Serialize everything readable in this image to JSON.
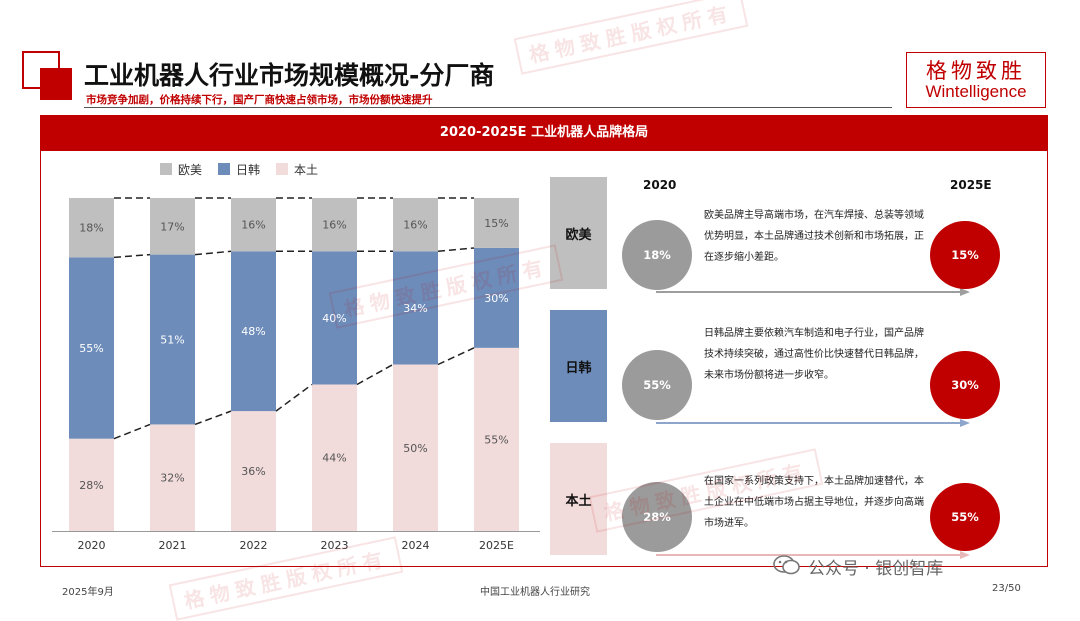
{
  "header": {
    "title": "工业机器人行业市场规模概况-分厂商",
    "subtitle": "市场竞争加剧，价格持续下行，国产厂商快速占领市场，市场份额快速提升",
    "brand_cn": "格物致胜",
    "brand_en": "Wintelligence"
  },
  "banner": {
    "title": "2020-2025E  工业机器人品牌格局"
  },
  "chart_data": {
    "type": "bar",
    "stacked": true,
    "categories": [
      "2020",
      "2021",
      "2022",
      "2023",
      "2024",
      "2025E"
    ],
    "series": [
      {
        "name": "本土",
        "values": [
          28,
          32,
          36,
          44,
          50,
          55
        ],
        "labels": [
          "28%",
          "32%",
          "36%",
          "44%",
          "50%",
          "55%"
        ],
        "color": "#f2dcdb"
      },
      {
        "name": "日韩",
        "values": [
          55,
          51,
          48,
          40,
          34,
          30
        ],
        "labels": [
          "55%",
          "51%",
          "48%",
          "40%",
          "34%",
          "30%"
        ],
        "color": "#6d8cba"
      },
      {
        "name": "欧美",
        "values": [
          18,
          17,
          16,
          16,
          16,
          15
        ],
        "labels": [
          "18%",
          "17%",
          "16%",
          "16%",
          "16%",
          "15%"
        ],
        "color": "#bfbfbf"
      }
    ],
    "legend_order": [
      "欧美",
      "日韩",
      "本土"
    ],
    "legend_position": "top",
    "connector_lines": "dashed",
    "grid": false
  },
  "comparison": {
    "year_from": "2020",
    "year_to": "2025E",
    "rows": [
      {
        "category": "欧美",
        "from": "18%",
        "to": "15%",
        "description": "欧美品牌主导高端市场，在汽车焊接、总装等领域优势明显，本土品牌通过技术创新和市场拓展，正在逐步缩小差距。",
        "block_color": "#bfbfbf",
        "arrow_color": "#9e9e9e"
      },
      {
        "category": "日韩",
        "from": "55%",
        "to": "30%",
        "description": "日韩品牌主要依赖汽车制造和电子行业，国产品牌技术持续突破，通过高性价比快速替代日韩品牌，未来市场份额将进一步收窄。",
        "block_color": "#6d8cba",
        "arrow_color": "#8ea6cc"
      },
      {
        "category": "本土",
        "from": "28%",
        "to": "55%",
        "description": "在国家一系列政策支持下，本土品牌加速替代，本土企业在中低端市场占据主导地位，并逐步向高端市场进军。",
        "block_color": "#f2dcdb",
        "arrow_color": "#e8b8b8"
      }
    ],
    "circle_from_color": "#9b9b9b",
    "circle_to_color": "#c00000"
  },
  "watermark": "格物致胜版权所有",
  "footer": {
    "date": "2025年9月",
    "report": "中国工业机器人行业研究",
    "page": "23/50",
    "wechat": "公众号 · 银创智库"
  }
}
